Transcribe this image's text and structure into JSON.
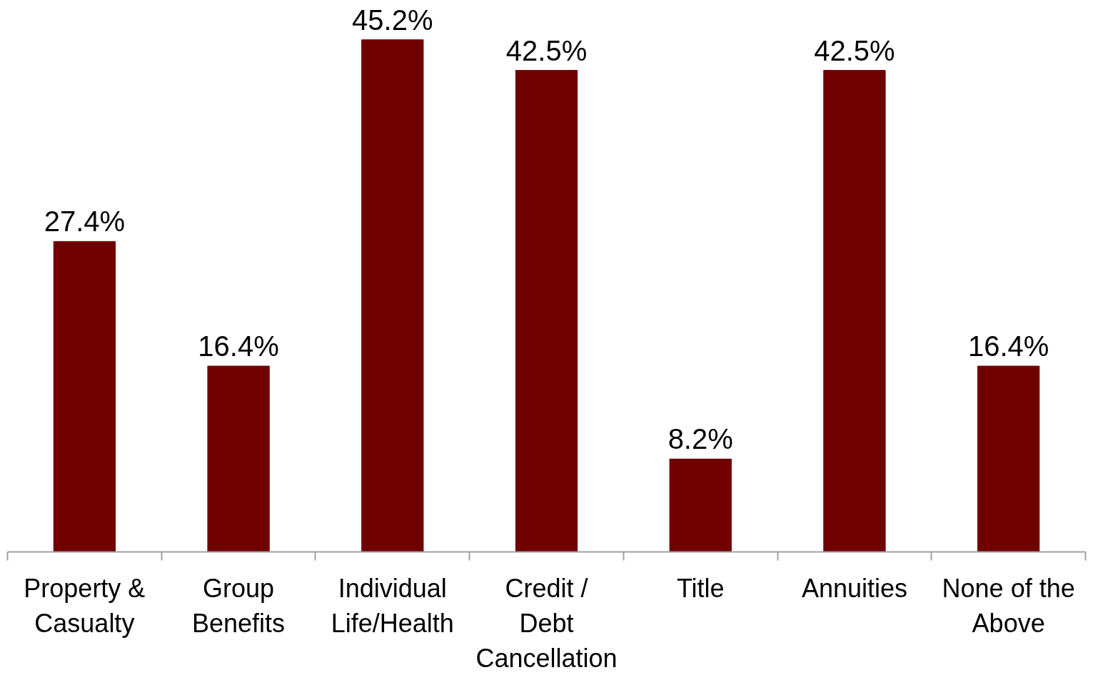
{
  "chart_data": {
    "type": "bar",
    "categories": [
      "Property & Casualty",
      "Group Benefits",
      "Individual Life/Health",
      "Credit / Debt Cancellation",
      "Title",
      "Annuities",
      "None of the Above"
    ],
    "values": [
      27.4,
      16.4,
      45.2,
      42.5,
      8.2,
      42.5,
      16.4
    ],
    "value_labels": [
      "27.4%",
      "16.4%",
      "45.2%",
      "42.5%",
      "8.2%",
      "42.5%",
      "16.4%"
    ],
    "color": "#700000",
    "grid": false
  }
}
